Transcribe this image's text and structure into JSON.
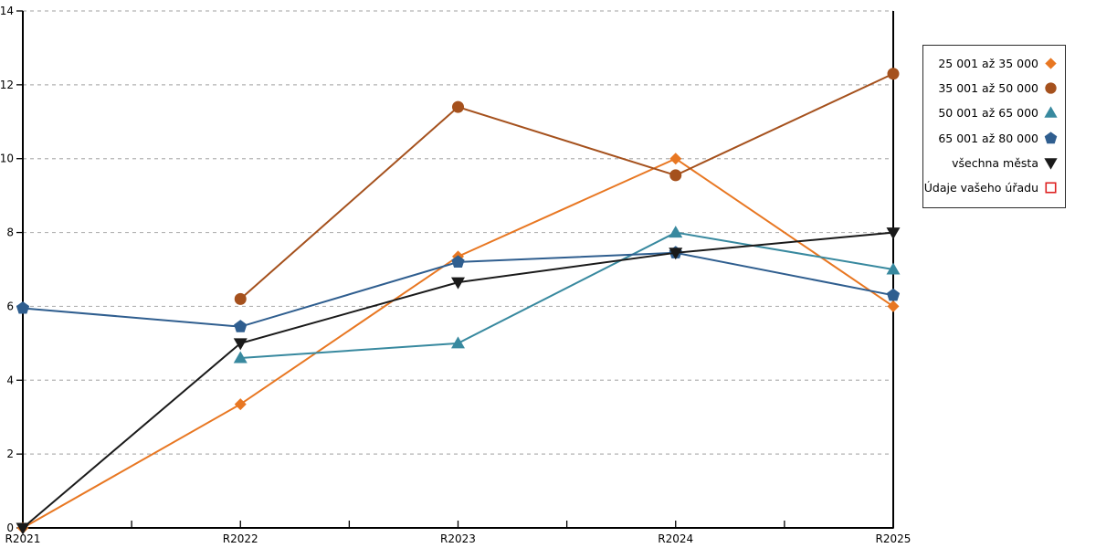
{
  "chart_data": {
    "type": "line",
    "title": "",
    "xlabel": "",
    "ylabel": "",
    "x_categories": [
      "R2021",
      "R2022",
      "R2023",
      "R2024",
      "R2025"
    ],
    "ylim": [
      0,
      14
    ],
    "yticks": [
      0,
      2,
      4,
      6,
      8,
      10,
      12,
      14
    ],
    "grid": "horizontal-dashed",
    "grid_color": "#b3b3b3",
    "axis_color": "#000000",
    "background_color": "#ffffff",
    "legend_position": "right-outside",
    "series": [
      {
        "name": "25 001 až 35 000",
        "marker": "diamond",
        "color": "#E87722",
        "values": [
          0,
          3.35,
          7.35,
          10.0,
          6.0
        ]
      },
      {
        "name": "35 001 až 50 000",
        "marker": "circle",
        "color": "#A5511D",
        "values": [
          null,
          6.2,
          11.4,
          9.55,
          12.3
        ]
      },
      {
        "name": "50 001 až 65 000",
        "marker": "triangle-up",
        "color": "#38899F",
        "values": [
          null,
          4.6,
          5.0,
          8.0,
          7.0
        ]
      },
      {
        "name": "65 001 až 80 000",
        "marker": "pentagon",
        "color": "#2F5E8F",
        "values": [
          5.95,
          5.45,
          7.2,
          7.45,
          6.3
        ]
      },
      {
        "name": "všechna města",
        "marker": "triangle-down",
        "color": "#1A1A1A",
        "values": [
          0,
          5.0,
          6.65,
          7.45,
          8.0
        ]
      },
      {
        "name": "Údaje vašeho úřadu",
        "marker": "square-open",
        "color": "#DD2222",
        "values": [
          null,
          null,
          null,
          null,
          null
        ]
      }
    ]
  }
}
